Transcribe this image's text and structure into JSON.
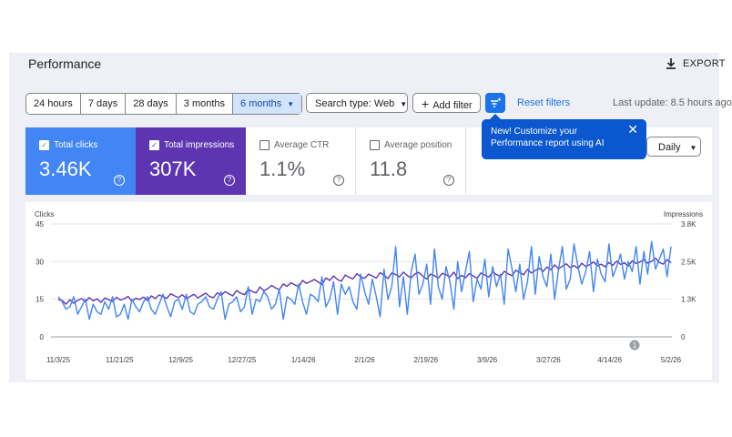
{
  "header": {
    "title": "Performance",
    "export_label": "EXPORT"
  },
  "date_ranges": [
    "24 hours",
    "7 days",
    "28 days",
    "3 months",
    "6 months"
  ],
  "date_range_selected": "6 months",
  "filters": {
    "search_type": "Search type: Web",
    "add_filter": "Add filter",
    "reset": "Reset filters",
    "last_update": "Last update: 8.5 hours ago"
  },
  "metrics": [
    {
      "label": "Total clicks",
      "value": "3.46K",
      "checked": true
    },
    {
      "label": "Total impressions",
      "value": "307K",
      "checked": true
    },
    {
      "label": "Average CTR",
      "value": "1.1%",
      "checked": false
    },
    {
      "label": "Average position",
      "value": "11.8",
      "checked": false
    }
  ],
  "tooltip": {
    "text": "New! Customize your Performance report using AI"
  },
  "granularity": "Daily",
  "colors": {
    "clicks": "#4285f4",
    "impressions": "#5e35b1",
    "accent": "#1a73e8"
  },
  "chart_data": {
    "type": "line",
    "left_axis_title": "Clicks",
    "right_axis_title": "Impressions",
    "left_ticks": [
      "45",
      "30",
      "15",
      "0"
    ],
    "right_ticks": [
      "3.8K",
      "2.5K",
      "1.3K",
      "0"
    ],
    "x_ticks": [
      "11/3/25",
      "11/21/25",
      "12/9/25",
      "12/27/25",
      "1/14/26",
      "2/1/26",
      "2/19/26",
      "3/9/26",
      "3/27/26",
      "4/14/26",
      "5/2/26"
    ],
    "annotation": "1",
    "ylim_left": [
      0,
      45
    ],
    "ylim_right": [
      0,
      3800
    ],
    "series": [
      {
        "name": "Clicks",
        "axis": "left",
        "values": [
          16,
          14,
          11,
          12,
          16,
          9,
          12,
          15,
          7,
          13,
          10,
          9,
          14,
          11,
          16,
          8,
          9,
          13,
          7,
          15,
          12,
          10,
          14,
          16,
          11,
          9,
          13,
          17,
          12,
          8,
          14,
          15,
          11,
          17,
          10,
          9,
          13,
          14,
          16,
          12,
          11,
          15,
          18,
          7,
          13,
          14,
          16,
          10,
          12,
          20,
          9,
          15,
          14,
          18,
          16,
          11,
          13,
          19,
          7,
          16,
          15,
          13,
          21,
          14,
          9,
          17,
          16,
          14,
          24,
          12,
          15,
          22,
          9,
          21,
          17,
          20,
          14,
          11,
          25,
          18,
          13,
          23,
          16,
          8,
          27,
          15,
          20,
          36,
          12,
          24,
          9,
          26,
          33,
          17,
          21,
          29,
          13,
          35,
          20,
          15,
          28,
          22,
          11,
          30,
          18,
          26,
          34,
          14,
          23,
          19,
          31,
          16,
          28,
          20,
          25,
          13,
          35,
          27,
          18,
          29,
          15,
          22,
          36,
          17,
          32,
          24,
          20,
          33,
          15,
          27,
          36,
          19,
          23,
          37,
          28,
          21,
          26,
          34,
          18,
          31,
          25,
          22,
          37,
          24,
          28,
          33,
          23,
          30,
          26,
          36,
          21,
          34,
          25,
          38,
          27,
          31,
          35,
          24,
          36
        ]
      },
      {
        "name": "Impressions",
        "axis": "right",
        "values": [
          1250,
          1220,
          1100,
          1250,
          1130,
          1230,
          1290,
          1180,
          1320,
          1210,
          1280,
          1160,
          1310,
          1250,
          1190,
          1330,
          1240,
          1280,
          1360,
          1200,
          1300,
          1260,
          1340,
          1220,
          1380,
          1290,
          1410,
          1350,
          1300,
          1450,
          1380,
          1320,
          1420,
          1280,
          1360,
          1430,
          1310,
          1390,
          1470,
          1360,
          1320,
          1480,
          1400,
          1520,
          1450,
          1380,
          1560,
          1470,
          1420,
          1600,
          1530,
          1480,
          1680,
          1550,
          1620,
          1730,
          1650,
          1590,
          1780,
          1700,
          1820,
          1750,
          1690,
          1900,
          1800,
          1860,
          1930,
          1850,
          1760,
          1980,
          1900,
          2050,
          1930,
          1870,
          2080,
          2000,
          1950,
          2130,
          2020,
          1970,
          2110,
          2050,
          1980,
          2160,
          2080,
          1960,
          2150,
          2100,
          2020,
          2180,
          2060,
          1990,
          2120,
          2170,
          2040,
          1950,
          2110,
          2060,
          1980,
          2140,
          2090,
          2020,
          2180,
          1960,
          2070,
          1990,
          2130,
          2050,
          1970,
          2150,
          2080,
          2010,
          2180,
          2100,
          2030,
          2210,
          2120,
          2060,
          2240,
          2170,
          2090,
          2270,
          2150,
          2230,
          2310,
          2200,
          2350,
          2260,
          2420,
          2290,
          2380,
          2460,
          2330,
          2400,
          2300,
          2480,
          2370,
          2430,
          2520,
          2390,
          2450,
          2360,
          2500,
          2410,
          2550,
          2440,
          2490,
          2380,
          2560,
          2470,
          2520,
          2600,
          2480,
          2540,
          2650,
          2500,
          2450,
          2600,
          2500
        ]
      }
    ]
  }
}
